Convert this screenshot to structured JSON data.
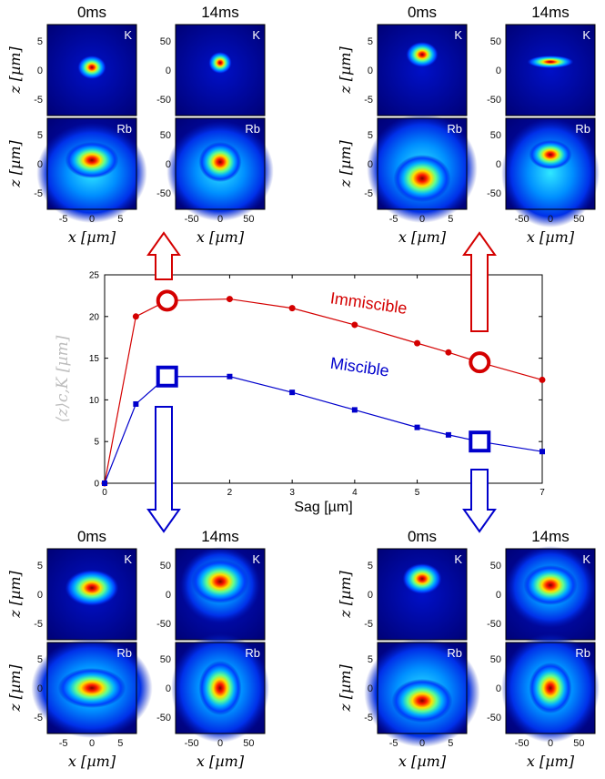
{
  "chart_data": {
    "type": "line",
    "xlabel": "Sag [µm]",
    "ylabel": "⟨z⟩c,K [µm]",
    "xlim": [
      0,
      7
    ],
    "ylim": [
      0,
      25
    ],
    "xticks": [
      "0",
      "1",
      "2",
      "3",
      "4",
      "5",
      "6",
      "7"
    ],
    "yticks": [
      "0",
      "5",
      "10",
      "15",
      "20",
      "25"
    ],
    "series": [
      {
        "name": "Immiscible",
        "color": "#d40000",
        "marker": "circle",
        "x": [
          0,
          0.5,
          1,
          2,
          3,
          4,
          5,
          5.5,
          6,
          7
        ],
        "y": [
          0,
          20,
          21.9,
          22.1,
          21,
          19,
          16.8,
          15.7,
          14.5,
          12.4
        ],
        "highlight_x": [
          1,
          6
        ]
      },
      {
        "name": "Miscible",
        "color": "#0000cc",
        "marker": "square",
        "x": [
          0,
          0.5,
          1,
          2,
          3,
          4,
          5,
          5.5,
          6,
          7
        ],
        "y": [
          0,
          9.5,
          12.8,
          12.8,
          10.9,
          8.8,
          6.7,
          5.8,
          5,
          3.8
        ],
        "highlight_x": [
          1,
          6
        ]
      }
    ],
    "annotations": [
      "Immiscible",
      "Miscible"
    ]
  },
  "panels": {
    "time_labels": [
      "0ms",
      "14ms"
    ],
    "species": [
      "K",
      "Rb"
    ],
    "x_label": "x [µm]",
    "z_label": "z [µm]",
    "ticks_small": [
      "-5",
      "0",
      "5"
    ],
    "ticks_large": [
      "-50",
      "0",
      "50"
    ]
  },
  "colors": {
    "jet_low": "#00008f",
    "jet_high": "#800000"
  }
}
